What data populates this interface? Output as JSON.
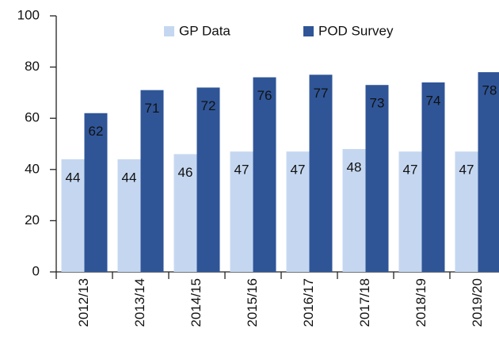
{
  "chart_data": {
    "type": "bar",
    "categories": [
      "2012/13",
      "2013/14",
      "2014/15",
      "2015/16",
      "2016/17",
      "2017/18",
      "2018/19",
      "2019/20"
    ],
    "series": [
      {
        "name": "GP Data",
        "color": "#c5d7f0",
        "values": [
          44,
          44,
          46,
          47,
          47,
          48,
          47,
          47
        ]
      },
      {
        "name": "POD Survey",
        "color": "#2f5597",
        "values": [
          62,
          71,
          72,
          76,
          77,
          73,
          74,
          78
        ]
      }
    ],
    "ylim": [
      0,
      100
    ],
    "yticks": [
      0,
      20,
      40,
      60,
      80,
      100
    ],
    "grid": false,
    "legend": "top"
  }
}
